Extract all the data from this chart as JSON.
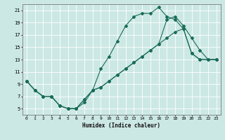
{
  "xlabel": "Humidex (Indice chaleur)",
  "bg_color": "#cce8e4",
  "grid_color": "#ffffff",
  "line_color": "#1a6b5a",
  "xlim": [
    -0.5,
    23.5
  ],
  "ylim": [
    4.0,
    22.0
  ],
  "xticks": [
    0,
    1,
    2,
    3,
    4,
    5,
    6,
    7,
    8,
    9,
    10,
    11,
    12,
    13,
    14,
    15,
    16,
    17,
    18,
    19,
    20,
    21,
    22,
    23
  ],
  "yticks": [
    5,
    7,
    9,
    11,
    13,
    15,
    17,
    19,
    21
  ],
  "line1_x": [
    0,
    1,
    2,
    3,
    4,
    5,
    6,
    7,
    8,
    9,
    10,
    11,
    12,
    13,
    14,
    15,
    16,
    17,
    18,
    19,
    20,
    21,
    22,
    23
  ],
  "line1_y": [
    9.5,
    8.0,
    7.0,
    7.0,
    5.5,
    5.0,
    5.0,
    6.0,
    8.0,
    11.5,
    13.5,
    16.0,
    18.5,
    20.0,
    20.5,
    20.5,
    21.5,
    20.0,
    19.5,
    18.0,
    14.0,
    13.0,
    13.0,
    13.0
  ],
  "line2_x": [
    0,
    1,
    2,
    3,
    4,
    5,
    6,
    7,
    8,
    9,
    10,
    11,
    12,
    13,
    14,
    15,
    16,
    17,
    18,
    19,
    20,
    21,
    22,
    23
  ],
  "line2_y": [
    9.5,
    8.0,
    7.0,
    7.0,
    5.5,
    5.0,
    5.0,
    6.5,
    8.0,
    8.5,
    9.5,
    10.5,
    11.5,
    12.5,
    13.5,
    14.5,
    15.5,
    16.5,
    17.5,
    18.0,
    14.0,
    13.0,
    13.0,
    13.0
  ],
  "line3_x": [
    0,
    1,
    2,
    3,
    4,
    5,
    6,
    7,
    8,
    9,
    10,
    11,
    12,
    13,
    14,
    15,
    16,
    17,
    18,
    19,
    20,
    21,
    22,
    23
  ],
  "line3_y": [
    9.5,
    8.0,
    7.0,
    7.0,
    5.5,
    5.0,
    5.0,
    6.5,
    8.0,
    8.5,
    9.5,
    10.5,
    11.5,
    12.5,
    13.5,
    14.5,
    15.5,
    19.5,
    20.0,
    18.5,
    16.5,
    14.5,
    13.0,
    13.0
  ]
}
